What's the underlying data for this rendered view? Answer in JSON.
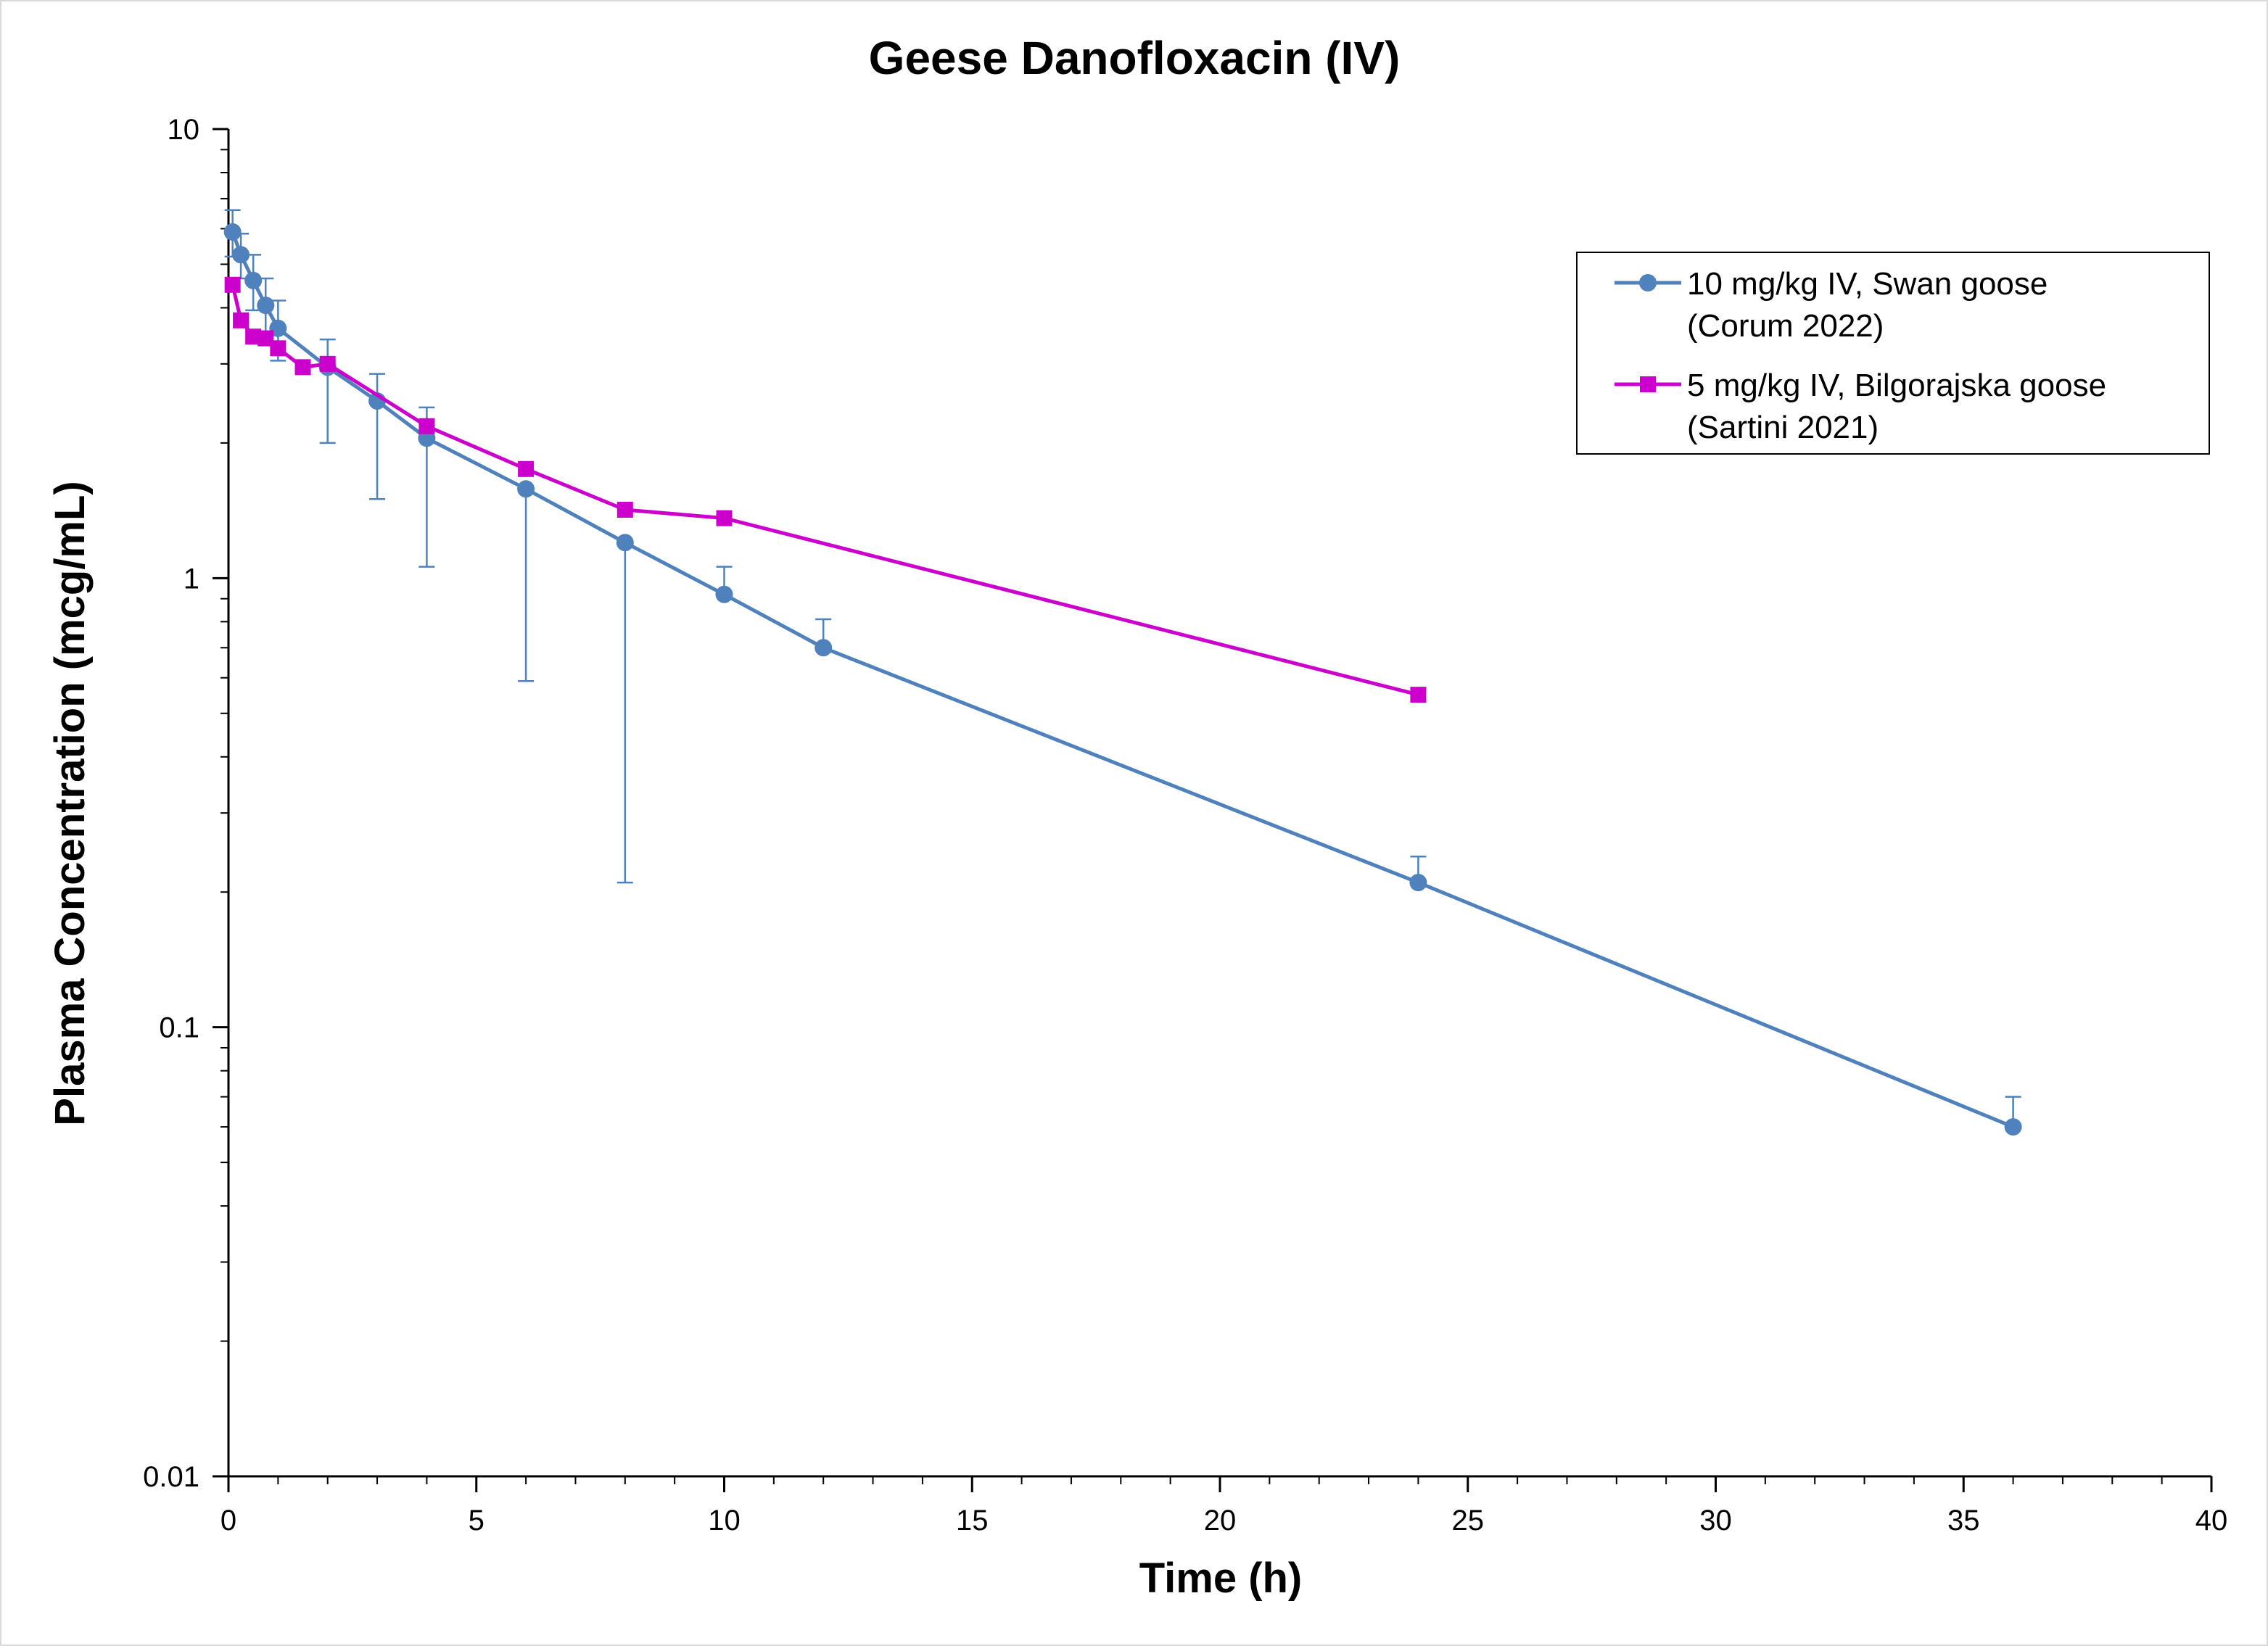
{
  "chart_data": {
    "type": "line",
    "title": "Geese Danofloxacin (IV)",
    "xlabel": "Time (h)",
    "ylabel": "Plasma Concentration (mcg/mL)",
    "x_scale": "linear",
    "y_scale": "log",
    "xlim": [
      0,
      40
    ],
    "ylim": [
      0.01,
      10
    ],
    "x_ticks": [
      0,
      5,
      10,
      15,
      20,
      25,
      30,
      35,
      40
    ],
    "x_tick_labels": [
      "0",
      "5",
      "10",
      "15",
      "20",
      "25",
      "30",
      "35",
      "40"
    ],
    "y_ticks": [
      0.01,
      0.1,
      1,
      10
    ],
    "y_tick_labels": [
      "0.01",
      "0.1",
      "1",
      "10"
    ],
    "grid": false,
    "legend_position": "top-right",
    "series": [
      {
        "name": "10 mg/kg IV, Swan goose (Corum 2022)",
        "legend_lines": [
          "10 mg/kg IV, Swan goose",
          "(Corum 2022)"
        ],
        "color": "#4f81bd",
        "marker": "circle",
        "x": [
          0.083,
          0.25,
          0.5,
          0.75,
          1,
          2,
          3,
          4,
          6,
          8,
          10,
          12,
          24,
          36
        ],
        "y": [
          5.9,
          5.25,
          4.6,
          4.05,
          3.6,
          2.95,
          2.48,
          2.05,
          1.58,
          1.2,
          0.92,
          0.7,
          0.21,
          0.06
        ],
        "error_upper": [
          6.6,
          5.85,
          5.25,
          4.65,
          4.15,
          3.4,
          2.85,
          2.4,
          1.58,
          1.2,
          1.06,
          0.81,
          0.24,
          0.07
        ],
        "error_lower": [
          5.2,
          4.65,
          3.95,
          3.45,
          3.05,
          2.0,
          1.5,
          1.06,
          0.59,
          0.21,
          0.92,
          0.7,
          0.21,
          0.06
        ]
      },
      {
        "name": "5 mg/kg IV, Bilgorajska goose (Sartini 2021)",
        "legend_lines": [
          "5 mg/kg IV, Bilgorajska goose",
          "(Sartini 2021)"
        ],
        "color": "#cc00cc",
        "marker": "square",
        "x": [
          0.083,
          0.25,
          0.5,
          0.75,
          1,
          1.5,
          2,
          4,
          6,
          8,
          10,
          24
        ],
        "y": [
          4.5,
          3.75,
          3.45,
          3.42,
          3.25,
          2.95,
          3.0,
          2.18,
          1.75,
          1.42,
          1.36,
          0.55
        ]
      }
    ]
  }
}
